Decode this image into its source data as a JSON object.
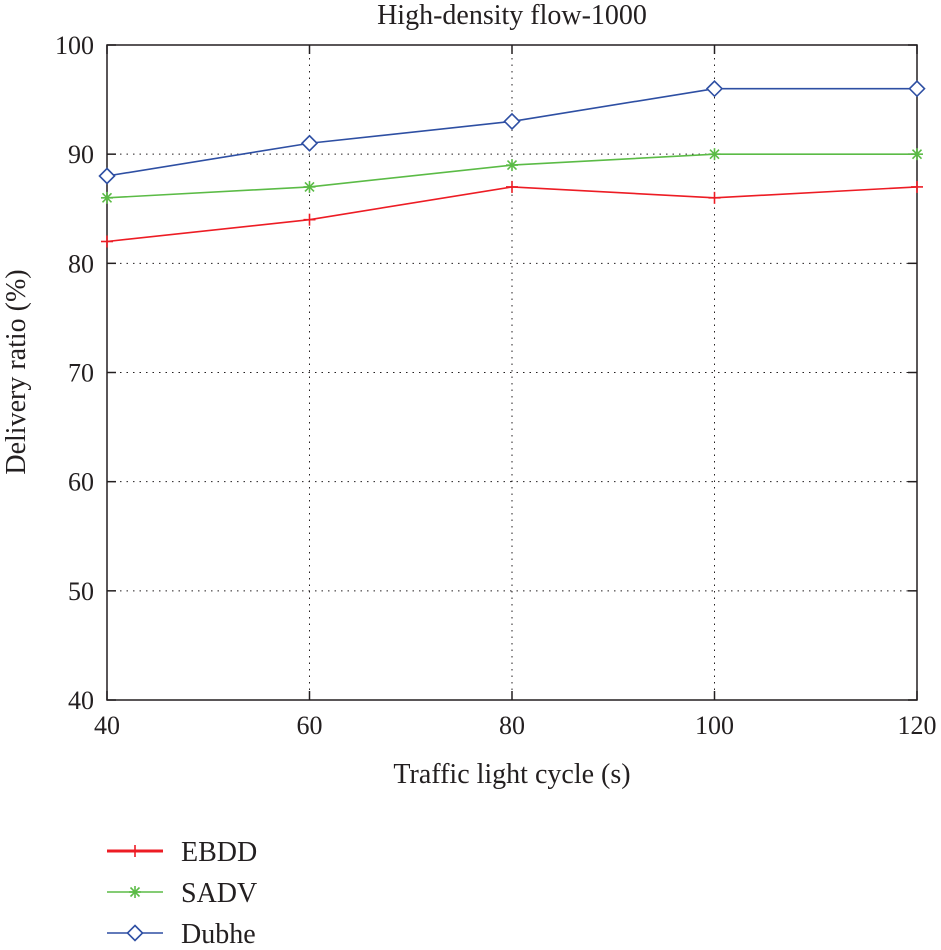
{
  "chart_data": {
    "type": "line",
    "title": "High-density flow-1000",
    "xlabel": "Traffic light cycle (s)",
    "ylabel": "Delivery ratio (%)",
    "x": [
      40,
      60,
      80,
      100,
      120
    ],
    "xlim": [
      40,
      120
    ],
    "ylim": [
      40,
      100
    ],
    "xticks": [
      40,
      60,
      80,
      100,
      120
    ],
    "yticks": [
      40,
      50,
      60,
      70,
      80,
      90,
      100
    ],
    "xtick_labels": [
      "40",
      "60",
      "80",
      "100",
      "120"
    ],
    "ytick_labels": [
      "40",
      "50",
      "60",
      "70",
      "80",
      "90",
      "100"
    ],
    "grid": true,
    "legend_position": "below-left",
    "series": [
      {
        "name": "EBDD",
        "values": [
          82,
          84,
          87,
          86,
          87
        ],
        "color": "#ed1c24",
        "marker": "plus"
      },
      {
        "name": "SADV",
        "values": [
          86,
          87,
          89,
          90,
          90
        ],
        "color": "#5bbb46",
        "marker": "star"
      },
      {
        "name": "Dubhe",
        "values": [
          88,
          91,
          93,
          96,
          96
        ],
        "color": "#2e4fa3",
        "marker": "diamond"
      }
    ]
  }
}
